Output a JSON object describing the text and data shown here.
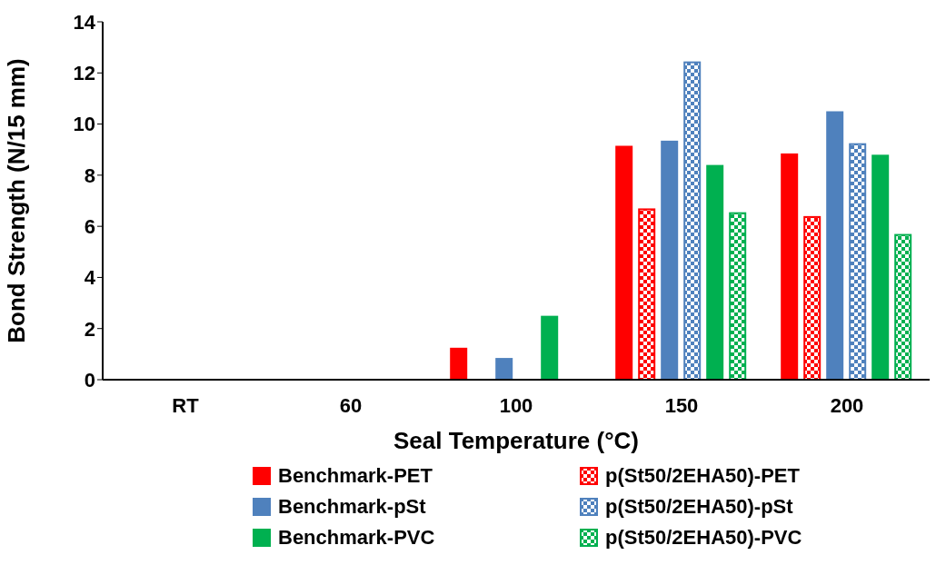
{
  "chart_data": {
    "type": "bar",
    "xlabel": "Seal Temperature (°C)",
    "ylabel": "Bond Strength (N/15 mm)",
    "categories": [
      "RT",
      "60",
      "100",
      "150",
      "200"
    ],
    "series": [
      {
        "name": "Benchmark-PET",
        "color": "#ff0000",
        "values": [
          null,
          null,
          1.25,
          9.15,
          8.85
        ]
      },
      {
        "name": "p(St50/2EHA50)-PET",
        "color": "#ff0000",
        "values": [
          null,
          null,
          null,
          6.7,
          6.4
        ]
      },
      {
        "name": "Benchmark-pSt",
        "color": "#4f81bd",
        "values": [
          null,
          null,
          0.85,
          9.35,
          10.5
        ]
      },
      {
        "name": "p(St50/2EHA50)-pSt",
        "color": "#4f81bd",
        "values": [
          null,
          null,
          null,
          12.45,
          9.25
        ]
      },
      {
        "name": "Benchmark-PVC",
        "color": "#00b050",
        "values": [
          null,
          null,
          2.5,
          8.4,
          8.8
        ]
      },
      {
        "name": "p(St50/2EHA50)-PVC",
        "color": "#00b050",
        "values": [
          null,
          null,
          null,
          6.55,
          5.7
        ]
      }
    ],
    "ylim": [
      0,
      14
    ],
    "yticks": [
      0,
      2,
      4,
      6,
      8,
      10,
      12,
      14
    ],
    "grid": false,
    "legend": "bottom"
  }
}
